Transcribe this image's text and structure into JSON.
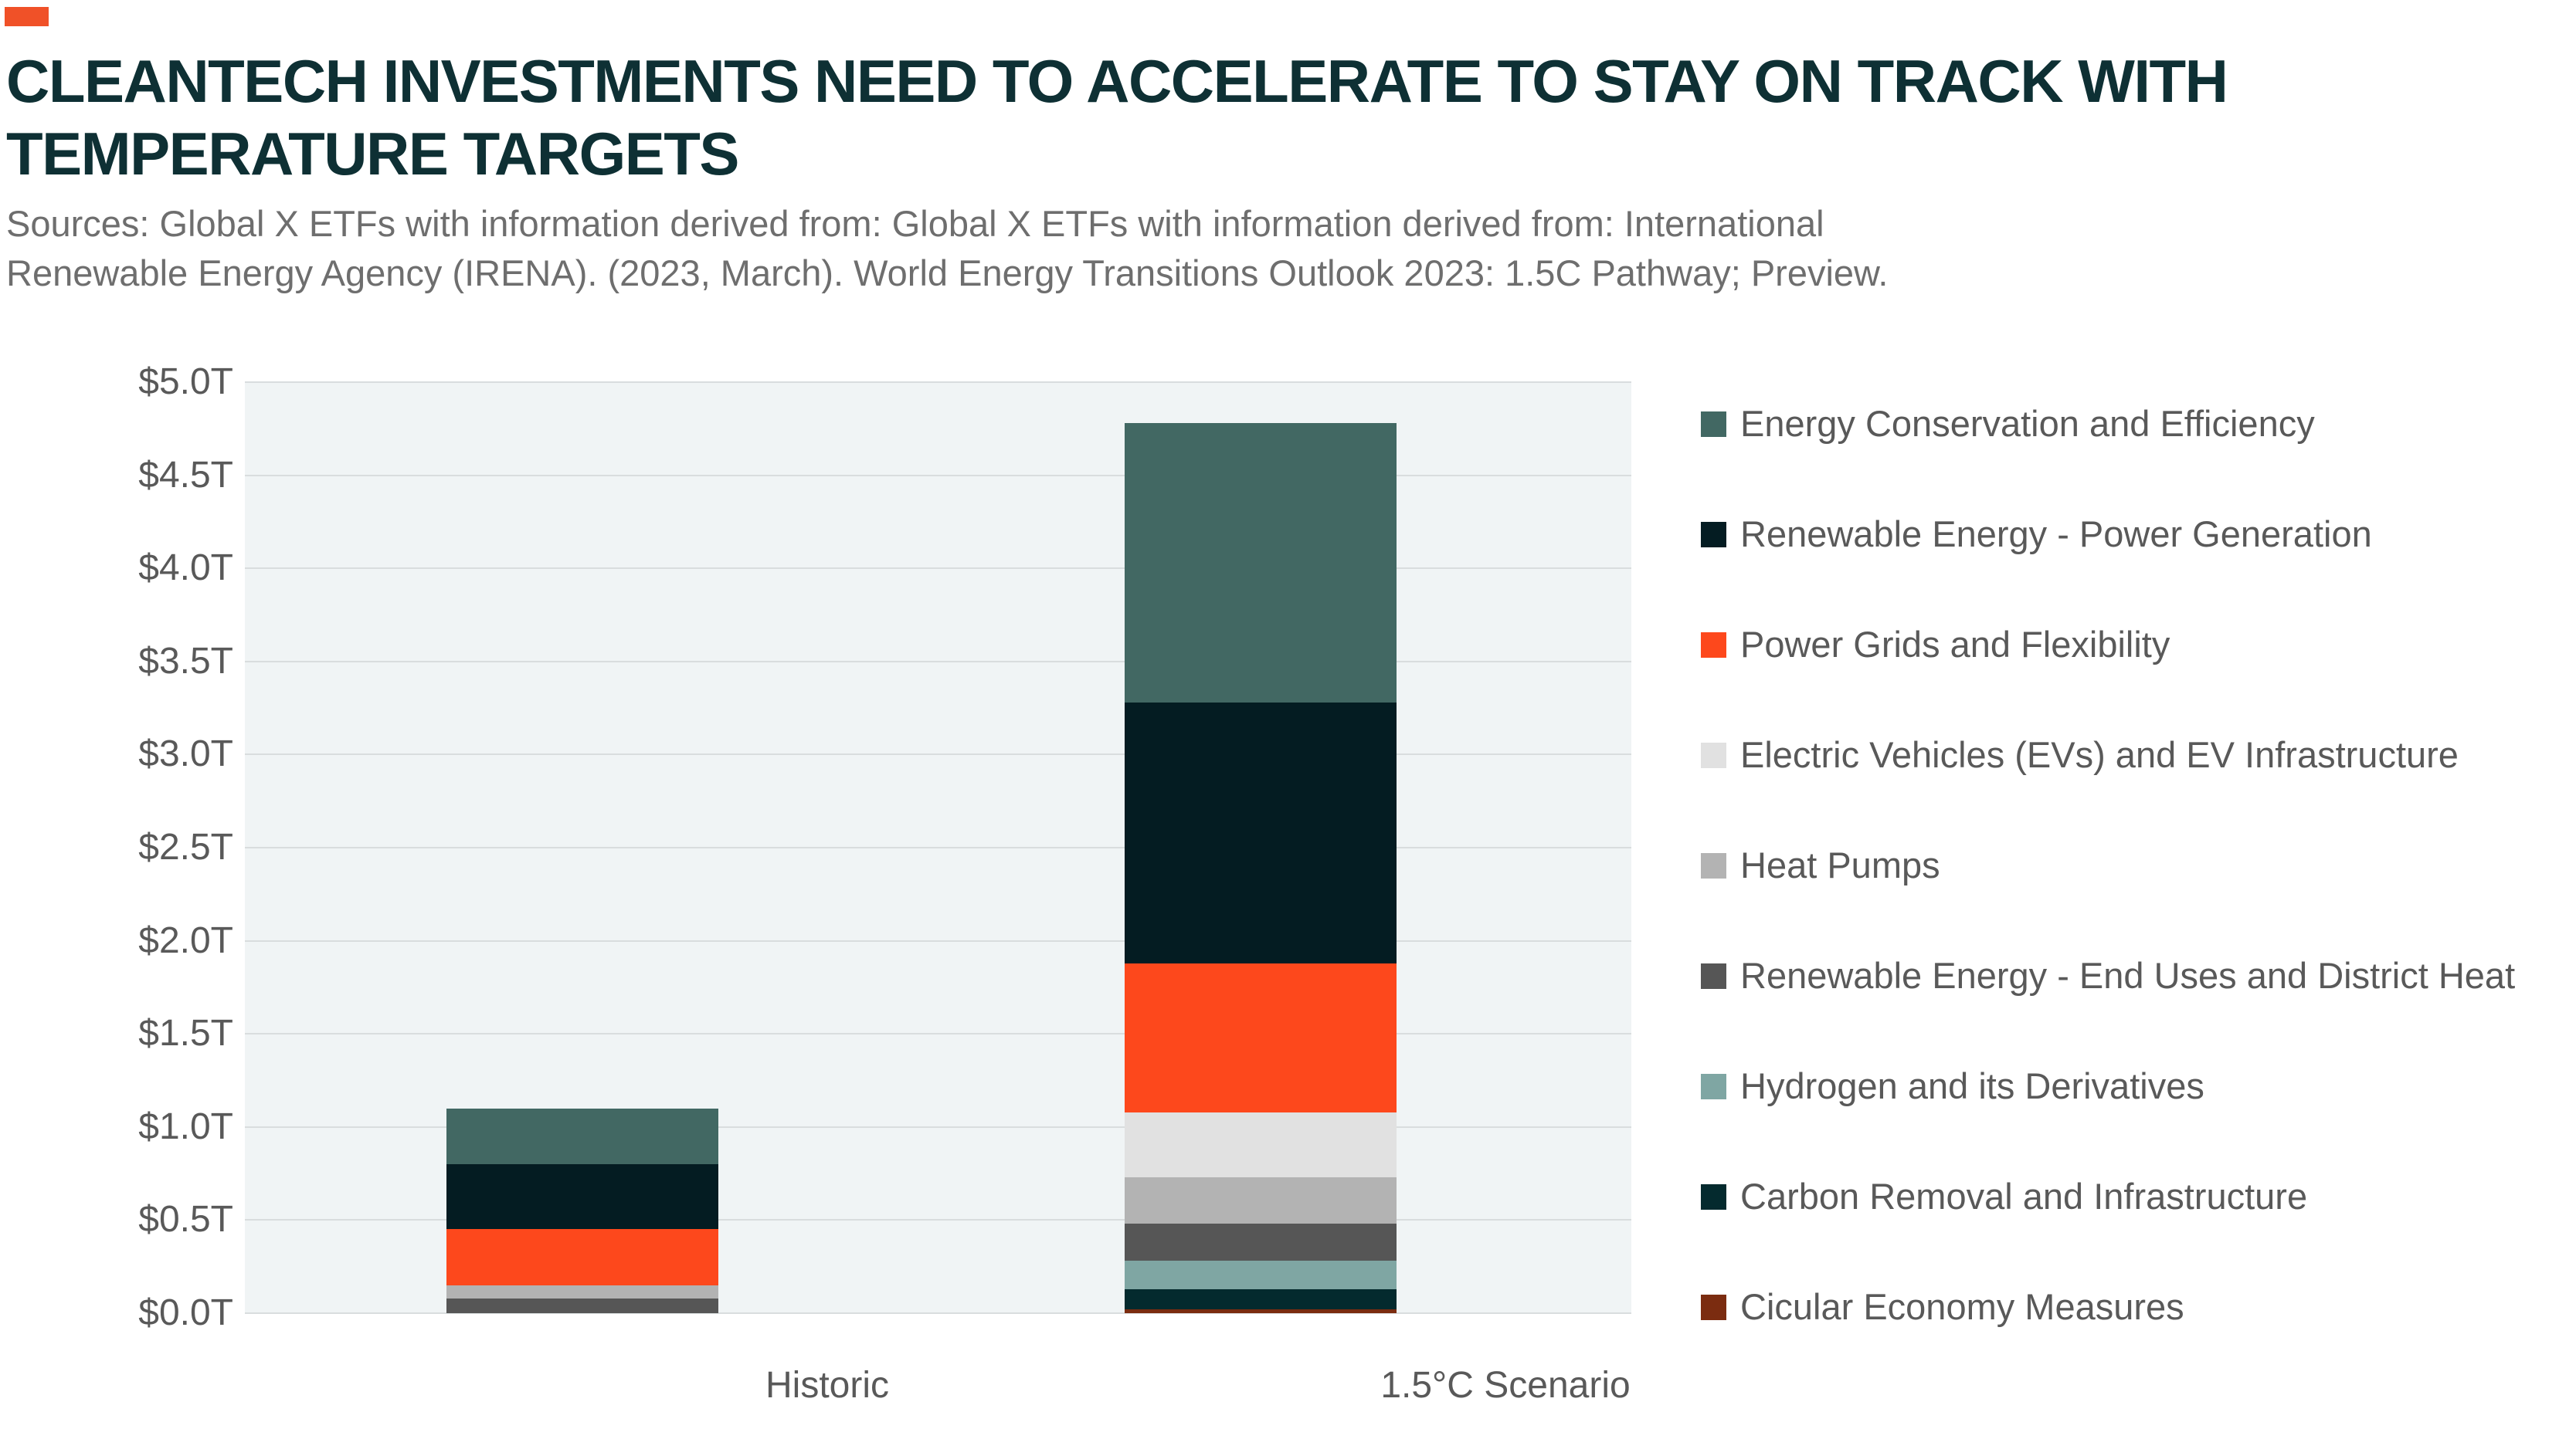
{
  "header": {
    "accent_color": "#F05128",
    "title_line1": "CLEANTECH INVESTMENTS NEED TO ACCELERATE TO STAY ON TRACK WITH",
    "title_line2": "TEMPERATURE TARGETS",
    "title_color": "#0E3034",
    "source_line1": "Sources: Global X ETFs with information derived from: Global X ETFs with information derived from: International",
    "source_line2": "Renewable Energy Agency (IRENA). (2023, March). World Energy Transitions Outlook 2023: 1.5C Pathway; Preview.",
    "source_color": "#6E6E6E"
  },
  "colors": {
    "plot_background": "#F0F4F5",
    "gridline": "#D9DDDE",
    "axis_text": "#595959",
    "legend_text": "#595959"
  },
  "chart_data": {
    "type": "bar",
    "stacked": true,
    "title": "",
    "xlabel": "",
    "ylabel": "",
    "categories": [
      "Historic",
      "1.5°C Scenario"
    ],
    "series": [
      {
        "name": "Energy Conservation and Efficiency",
        "color": "#426863",
        "values": [
          0.3,
          1.5
        ]
      },
      {
        "name": "Renewable Energy - Power Generation",
        "color": "#041C22",
        "values": [
          0.35,
          1.4
        ]
      },
      {
        "name": "Power Grids and Flexibility",
        "color": "#FD481C",
        "values": [
          0.3,
          0.8
        ]
      },
      {
        "name": "Electric Vehicles (EVs) and EV Infrastructure",
        "color": "#E1E1E1",
        "values": [
          0.0,
          0.35
        ]
      },
      {
        "name": "Heat Pumps",
        "color": "#B3B3B3",
        "values": [
          0.07,
          0.25
        ]
      },
      {
        "name": "Renewable Energy - End Uses and District Heat",
        "color": "#565656",
        "values": [
          0.08,
          0.2
        ]
      },
      {
        "name": "Hydrogen and its Derivatives",
        "color": "#7FA6A3",
        "values": [
          0.0,
          0.15
        ]
      },
      {
        "name": "Carbon Removal and Infrastructure",
        "color": "#042A2E",
        "values": [
          0.0,
          0.11
        ]
      },
      {
        "name": "Cicular Economy Measures",
        "color": "#7B2C10",
        "values": [
          0.0,
          0.02
        ]
      }
    ],
    "bar_totals": [
      1.1,
      4.8
    ],
    "y_ticks": [
      "$0.0T",
      "$0.5T",
      "$1.0T",
      "$1.5T",
      "$2.0T",
      "$2.5T",
      "$3.0T",
      "$3.5T",
      "$4.0T",
      "$4.5T",
      "$5.0T"
    ],
    "ylim": [
      0,
      5.0
    ],
    "y_tick_step": 0.5,
    "grid": true,
    "legend_position": "right",
    "stacking_order": "first-series-on-top"
  }
}
